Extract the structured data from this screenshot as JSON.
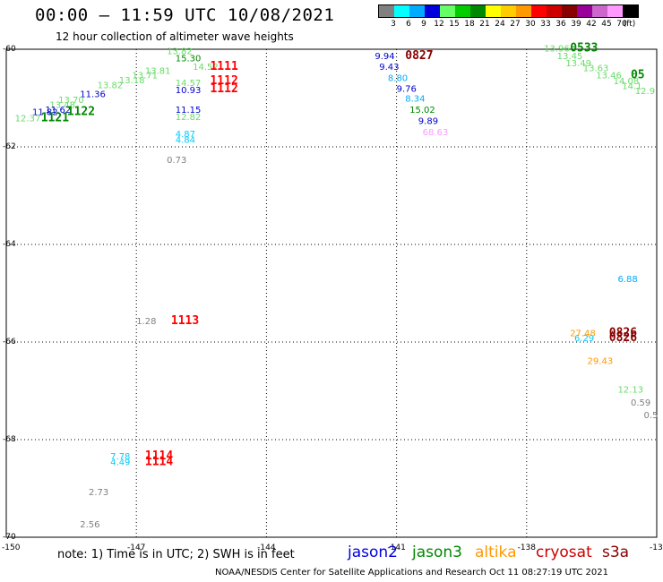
{
  "header": {
    "title": "00:00 – 11:59 UTC 10/08/2021",
    "subtitle": "12 hour collection of altimeter wave heights"
  },
  "color_scale": {
    "labels": [
      "3",
      "6",
      "9",
      "12",
      "15",
      "18",
      "21",
      "24",
      "27",
      "30",
      "33",
      "36",
      "39",
      "42",
      "45",
      "70",
      "(ft)"
    ],
    "colors": [
      "#808080",
      "#00ffff",
      "#00aaff",
      "#0000dd",
      "#66ff66",
      "#00cc00",
      "#008800",
      "#ffff00",
      "#ffcc00",
      "#ff9900",
      "#ff0000",
      "#cc0000",
      "#880000",
      "#990099",
      "#cc66cc",
      "#ff99ff",
      "#000000"
    ]
  },
  "axes": {
    "lat_labels": [
      "-60",
      "-62",
      "-64",
      "-66",
      "-68",
      "-70"
    ],
    "lon_labels": [
      "-150",
      "-147",
      "-144",
      "-141",
      "-138",
      "-13"
    ]
  },
  "observations": [
    {
      "text": "13.82",
      "color": "#66dd66",
      "lon": -146.3,
      "lat": -60.1
    },
    {
      "text": "15.30",
      "color": "#008800",
      "lon": -146.1,
      "lat": -60.25
    },
    {
      "text": "14.52",
      "color": "#66dd66",
      "lon": -145.7,
      "lat": -60.42
    },
    {
      "text": "1111",
      "color": "#ff0000",
      "lon": -145.3,
      "lat": -60.42,
      "bold": true
    },
    {
      "text": "13.81",
      "color": "#66dd66",
      "lon": -146.8,
      "lat": -60.5
    },
    {
      "text": "13.71",
      "color": "#66dd66",
      "lon": -147.1,
      "lat": -60.6
    },
    {
      "text": "13.18",
      "color": "#66dd66",
      "lon": -147.4,
      "lat": -60.7
    },
    {
      "text": "13.82",
      "color": "#66dd66",
      "lon": -147.9,
      "lat": -60.8
    },
    {
      "text": "14.57",
      "color": "#66dd66",
      "lon": -146.1,
      "lat": -60.75
    },
    {
      "text": "1112",
      "color": "#ff0000",
      "lon": -145.3,
      "lat": -60.72,
      "bold": true
    },
    {
      "text": "1112",
      "color": "#ff0000",
      "lon": -145.3,
      "lat": -60.88,
      "bold": true
    },
    {
      "text": "10.93",
      "color": "#0000cc",
      "lon": -146.1,
      "lat": -60.9
    },
    {
      "text": "11.36",
      "color": "#0000cc",
      "lon": -148.3,
      "lat": -60.98
    },
    {
      "text": "13.70",
      "color": "#66dd66",
      "lon": -148.8,
      "lat": -61.1
    },
    {
      "text": "13.48",
      "color": "#66dd66",
      "lon": -149.0,
      "lat": -61.2
    },
    {
      "text": "11.62",
      "color": "#0000cc",
      "lon": -149.1,
      "lat": -61.3
    },
    {
      "text": "11.82",
      "color": "#0000cc",
      "lon": -149.4,
      "lat": -61.35
    },
    {
      "text": "1122",
      "color": "#008800",
      "lon": -148.6,
      "lat": -61.35,
      "bold": true
    },
    {
      "text": "1121",
      "color": "#008800",
      "lon": -149.2,
      "lat": -61.48,
      "bold": true
    },
    {
      "text": "12.37",
      "color": "#66dd66",
      "lon": -149.8,
      "lat": -61.48
    },
    {
      "text": "11.15",
      "color": "#0000cc",
      "lon": -146.1,
      "lat": -61.3
    },
    {
      "text": "12.82",
      "color": "#66dd66",
      "lon": -146.1,
      "lat": -61.45
    },
    {
      "text": "4.87",
      "color": "#00ccff",
      "lon": -146.1,
      "lat": -61.8
    },
    {
      "text": "4.84",
      "color": "#00ccff",
      "lon": -146.1,
      "lat": -61.92
    },
    {
      "text": "0.73",
      "color": "#808080",
      "lon": -146.3,
      "lat": -62.33
    },
    {
      "text": "9.94",
      "color": "#0000cc",
      "lon": -141.5,
      "lat": -60.2
    },
    {
      "text": "0827",
      "color": "#880000",
      "lon": -140.8,
      "lat": -60.2,
      "bold": true
    },
    {
      "text": "9.43",
      "color": "#0000cc",
      "lon": -141.4,
      "lat": -60.42
    },
    {
      "text": "8.80",
      "color": "#00aaff",
      "lon": -141.2,
      "lat": -60.65
    },
    {
      "text": "9.76",
      "color": "#0000cc",
      "lon": -141.0,
      "lat": -60.87
    },
    {
      "text": "8.34",
      "color": "#00aaff",
      "lon": -140.8,
      "lat": -61.07
    },
    {
      "text": "15.02",
      "color": "#008800",
      "lon": -140.7,
      "lat": -61.3
    },
    {
      "text": "9.89",
      "color": "#0000cc",
      "lon": -140.5,
      "lat": -61.53
    },
    {
      "text": "68.63",
      "color": "#ff99ff",
      "lon": -140.4,
      "lat": -61.76
    },
    {
      "text": "13.96",
      "color": "#66dd66",
      "lon": -137.6,
      "lat": -60.05
    },
    {
      "text": "0533",
      "color": "#008800",
      "lon": -137.0,
      "lat": -60.05,
      "bold": true
    },
    {
      "text": "13.45",
      "color": "#66dd66",
      "lon": -137.3,
      "lat": -60.2
    },
    {
      "text": "13.49",
      "color": "#66dd66",
      "lon": -137.1,
      "lat": -60.35
    },
    {
      "text": "13.63",
      "color": "#66dd66",
      "lon": -136.7,
      "lat": -60.45
    },
    {
      "text": "13.46",
      "color": "#66dd66",
      "lon": -136.4,
      "lat": -60.6
    },
    {
      "text": "14.08",
      "color": "#66dd66",
      "lon": -136.0,
      "lat": -60.72
    },
    {
      "text": "14.1",
      "color": "#66dd66",
      "lon": -135.8,
      "lat": -60.82
    },
    {
      "text": "12.9",
      "color": "#66dd66",
      "lon": -135.5,
      "lat": -60.92
    },
    {
      "text": "05",
      "color": "#008800",
      "lon": -135.6,
      "lat": -60.6,
      "bold": true
    },
    {
      "text": "6.88",
      "color": "#00aaff",
      "lon": -135.9,
      "lat": -64.77
    },
    {
      "text": "27.48",
      "color": "#ff9900",
      "lon": -137.0,
      "lat": -65.88
    },
    {
      "text": "0826",
      "color": "#880000",
      "lon": -136.1,
      "lat": -65.88,
      "bold": true
    },
    {
      "text": "6.29",
      "color": "#00ccff",
      "lon": -136.9,
      "lat": -65.98
    },
    {
      "text": "0826",
      "color": "#880000",
      "lon": -136.1,
      "lat": -65.98,
      "bold": true
    },
    {
      "text": "29.43",
      "color": "#ff9900",
      "lon": -136.6,
      "lat": -66.45
    },
    {
      "text": "12.13",
      "color": "#66dd66",
      "lon": -135.9,
      "lat": -67.04
    },
    {
      "text": "0.59",
      "color": "#808080",
      "lon": -135.6,
      "lat": -67.3
    },
    {
      "text": "0.5",
      "color": "#808080",
      "lon": -135.3,
      "lat": -67.56
    },
    {
      "text": "1.28",
      "color": "#808080",
      "lon": -147.0,
      "lat": -65.63
    },
    {
      "text": "1113",
      "color": "#ff0000",
      "lon": -146.2,
      "lat": -65.63,
      "bold": true
    },
    {
      "text": "7.78",
      "color": "#00ccff",
      "lon": -147.6,
      "lat": -68.4
    },
    {
      "text": "4.49",
      "color": "#00ccff",
      "lon": -147.6,
      "lat": -68.52
    },
    {
      "text": "1114",
      "color": "#ff0000",
      "lon": -146.8,
      "lat": -68.4,
      "bold": true
    },
    {
      "text": "1114",
      "color": "#ff0000",
      "lon": -146.8,
      "lat": -68.52,
      "bold": true
    },
    {
      "text": "2.73",
      "color": "#808080",
      "lon": -148.1,
      "lat": -69.14
    },
    {
      "text": "2.56",
      "color": "#808080",
      "lon": -148.3,
      "lat": -69.8
    }
  ],
  "note": "note: 1) Time is in UTC; 2) SWH is in feet",
  "satellites": [
    {
      "name": "jason2",
      "color": "#0000dd"
    },
    {
      "name": "jason3",
      "color": "#008800"
    },
    {
      "name": "altika",
      "color": "#ff9900"
    },
    {
      "name": "cryosat",
      "color": "#cc0000"
    },
    {
      "name": "s3a",
      "color": "#880000"
    }
  ],
  "footer": "NOAA/NESDIS Center for Satellite Applications and Research    Oct 11 08:27:19 UTC 2021"
}
